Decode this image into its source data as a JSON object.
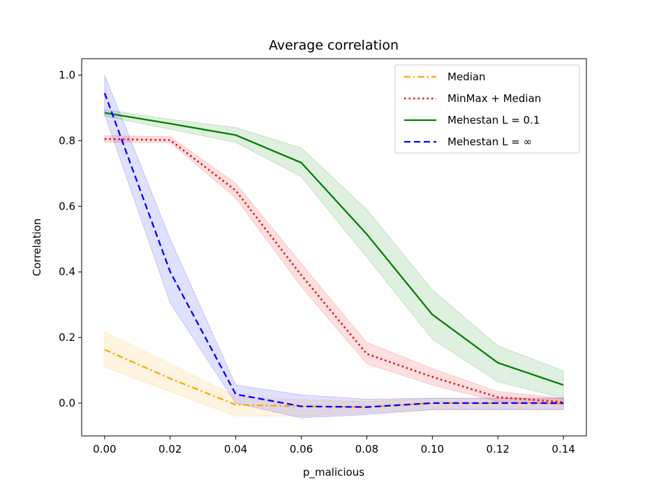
{
  "chart_data": {
    "type": "line",
    "title": "Average correlation",
    "xlabel": "p_malicious",
    "ylabel": "Correlation",
    "x": [
      0.0,
      0.02,
      0.04,
      0.06,
      0.08,
      0.1,
      0.12,
      0.14
    ],
    "xticks": [
      "0.00",
      "0.02",
      "0.04",
      "0.06",
      "0.08",
      "0.10",
      "0.12",
      "0.14"
    ],
    "yticks": [
      "0.0",
      "0.2",
      "0.4",
      "0.6",
      "0.8",
      "1.0"
    ],
    "xlim": [
      -0.007,
      0.147
    ],
    "ylim": [
      -0.1,
      1.05
    ],
    "grid": false,
    "legend_position": "top-right",
    "series": [
      {
        "name": "Median",
        "color": "#ffa500",
        "dash": "dashdot",
        "values": [
          0.163,
          0.075,
          -0.005,
          -0.01,
          -0.012,
          0.0,
          0.0,
          0.0
        ],
        "band_low": [
          0.11,
          0.035,
          -0.04,
          -0.04,
          -0.03,
          -0.02,
          -0.02,
          -0.02
        ],
        "band_high": [
          0.218,
          0.12,
          0.02,
          0.01,
          0.005,
          0.015,
          0.015,
          0.015
        ]
      },
      {
        "name": "MinMax +  Median",
        "color": "#ff0000",
        "dash": "dotted",
        "values": [
          0.805,
          0.802,
          0.648,
          0.39,
          0.15,
          0.08,
          0.018,
          0.003
        ],
        "band_low": [
          0.795,
          0.795,
          0.625,
          0.355,
          0.12,
          0.055,
          0.005,
          -0.005
        ],
        "band_high": [
          0.815,
          0.812,
          0.67,
          0.425,
          0.185,
          0.105,
          0.035,
          0.015
        ]
      },
      {
        "name": "Mehestan  L = 0.1",
        "color": "#008000",
        "dash": "solid",
        "values": [
          0.885,
          0.852,
          0.817,
          0.733,
          0.515,
          0.27,
          0.123,
          0.055
        ],
        "band_low": [
          0.875,
          0.835,
          0.795,
          0.69,
          0.445,
          0.195,
          0.065,
          0.015
        ],
        "band_high": [
          0.895,
          0.865,
          0.84,
          0.778,
          0.59,
          0.345,
          0.175,
          0.098
        ]
      },
      {
        "name": "Mehestan  L = ∞",
        "color": "#0000ff",
        "dash": "dashed",
        "values": [
          0.945,
          0.4,
          0.027,
          -0.01,
          -0.012,
          0.0,
          0.0,
          0.0
        ],
        "band_low": [
          0.88,
          0.305,
          0.0,
          -0.045,
          -0.035,
          -0.02,
          -0.02,
          -0.02
        ],
        "band_high": [
          1.0,
          0.5,
          0.055,
          0.025,
          0.012,
          0.015,
          0.015,
          0.015
        ]
      }
    ]
  }
}
